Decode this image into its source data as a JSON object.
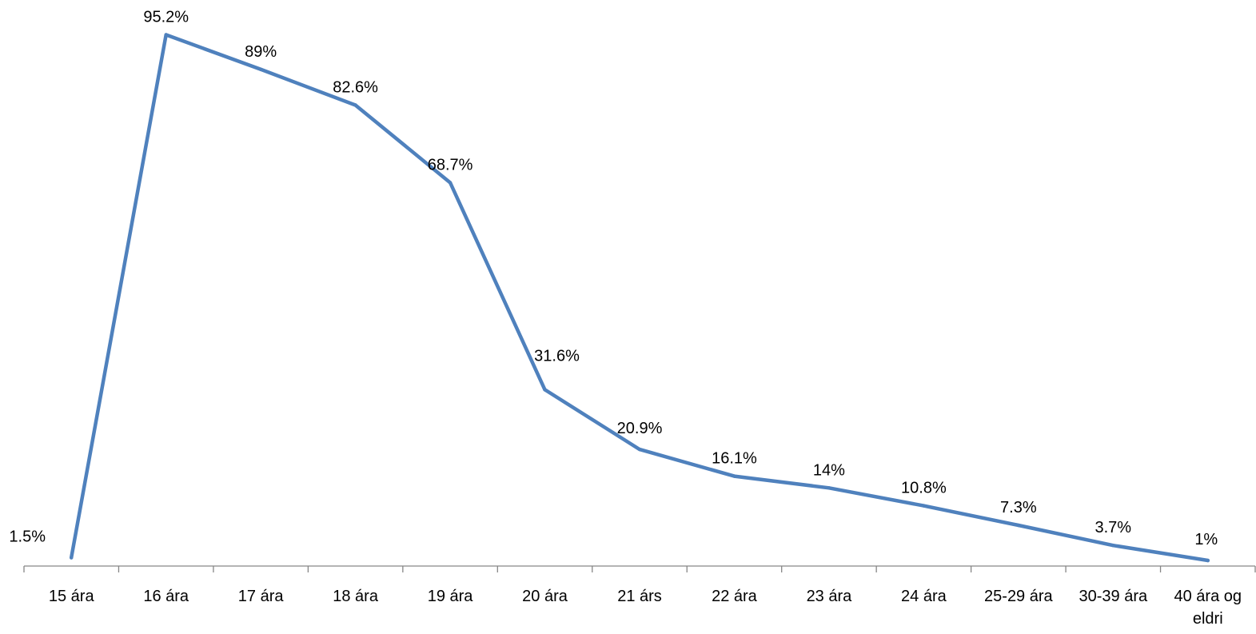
{
  "chart_data": {
    "type": "line",
    "title": "",
    "xlabel": "",
    "ylabel": "",
    "categories": [
      "15 ára",
      "16 ára",
      "17 ára",
      "18 ára",
      "19 ára",
      "20 ára",
      "21 árs",
      "22 ára",
      "23 ára",
      "24 ára",
      "25-29 ára",
      "30-39 ára",
      "40 ára og eldri"
    ],
    "series": [
      {
        "values": [
          1.5,
          95.2,
          89,
          82.6,
          68.7,
          31.6,
          20.9,
          16.1,
          14,
          10.8,
          7.3,
          3.7,
          1
        ],
        "labels": [
          "1.5%",
          "95.2%",
          "89%",
          "82.6%",
          "68.7%",
          "31.6%",
          "20.9%",
          "16.1%",
          "14%",
          "10.8%",
          "7.3%",
          "3.7%",
          "1%"
        ],
        "color": "#4f81bd"
      }
    ],
    "ylim": [
      0,
      100
    ],
    "grid": false,
    "legend": "none",
    "axis_color": "#868686"
  }
}
